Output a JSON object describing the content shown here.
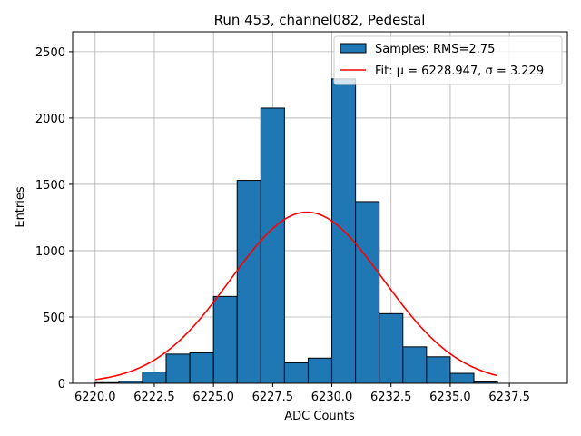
{
  "chart_data": {
    "type": "bar",
    "title": "Run 453, channel082, Pedestal",
    "xlabel": "ADC Counts",
    "ylabel": "Entries",
    "xlim": [
      6219.05,
      6239.95
    ],
    "ylim": [
      0,
      2650
    ],
    "grid": true,
    "bin_edges": [
      6220,
      6221,
      6222,
      6223,
      6224,
      6225,
      6226,
      6227,
      6228,
      6229,
      6230,
      6231,
      6232,
      6233,
      6234,
      6235,
      6236,
      6237
    ],
    "counts": [
      5,
      15,
      85,
      220,
      230,
      655,
      1530,
      2075,
      155,
      190,
      2295,
      1370,
      525,
      275,
      200,
      75,
      10
    ],
    "fit": {
      "mu": 6228.947,
      "sigma": 3.229,
      "amplitude": 1290,
      "x_range": [
        6220,
        6237
      ]
    },
    "x_ticks": [
      "6220.0",
      "6222.5",
      "6225.0",
      "6227.5",
      "6230.0",
      "6232.5",
      "6235.0",
      "6237.5"
    ],
    "x_tick_values": [
      6220.0,
      6222.5,
      6225.0,
      6227.5,
      6230.0,
      6232.5,
      6235.0,
      6237.5
    ],
    "y_ticks": [
      "0",
      "500",
      "1000",
      "1500",
      "2000",
      "2500"
    ],
    "y_tick_values": [
      0,
      500,
      1000,
      1500,
      2000,
      2500
    ],
    "legend": {
      "placement": "top-right",
      "samples_label": "Samples: RMS=2.75",
      "fit_label": "Fit: μ = 6228.947, σ = 3.229"
    },
    "colors": {
      "bar": "#1f77b4",
      "bar_edge": "#000000",
      "fit": "#ff0000",
      "grid": "#b0b0b0"
    }
  }
}
